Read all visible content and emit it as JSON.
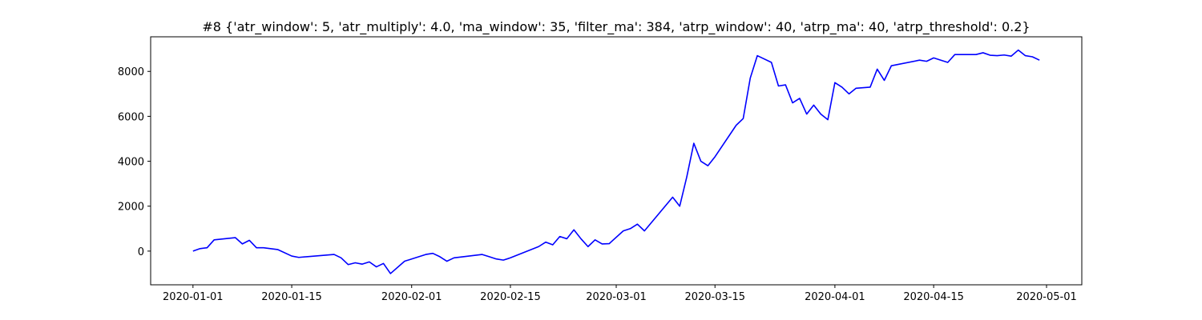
{
  "chart_data": {
    "type": "line",
    "title": "#8 {'atr_window': 5, 'atr_multiply': 4.0, 'ma_window': 35, 'filter_ma': 384, 'atrp_window': 40, 'atrp_ma': 40, 'atrp_threshold': 0.2}",
    "x": [
      "2020-01-01",
      "2020-01-02",
      "2020-01-03",
      "2020-01-04",
      "2020-01-07",
      "2020-01-08",
      "2020-01-09",
      "2020-01-10",
      "2020-01-11",
      "2020-01-13",
      "2020-01-15",
      "2020-01-16",
      "2020-01-21",
      "2020-01-22",
      "2020-01-23",
      "2020-01-24",
      "2020-01-25",
      "2020-01-26",
      "2020-01-27",
      "2020-01-28",
      "2020-01-29",
      "2020-01-31",
      "2020-02-03",
      "2020-02-04",
      "2020-02-05",
      "2020-02-06",
      "2020-02-07",
      "2020-02-11",
      "2020-02-12",
      "2020-02-13",
      "2020-02-14",
      "2020-02-15",
      "2020-02-19",
      "2020-02-20",
      "2020-02-21",
      "2020-02-22",
      "2020-02-23",
      "2020-02-24",
      "2020-02-25",
      "2020-02-26",
      "2020-02-27",
      "2020-02-28",
      "2020-02-29",
      "2020-03-02",
      "2020-03-03",
      "2020-03-04",
      "2020-03-05",
      "2020-03-09",
      "2020-03-10",
      "2020-03-11",
      "2020-03-12",
      "2020-03-13",
      "2020-03-14",
      "2020-03-15",
      "2020-03-18",
      "2020-03-19",
      "2020-03-20",
      "2020-03-21",
      "2020-03-23",
      "2020-03-24",
      "2020-03-25",
      "2020-03-26",
      "2020-03-27",
      "2020-03-28",
      "2020-03-29",
      "2020-03-30",
      "2020-03-31",
      "2020-04-01",
      "2020-04-02",
      "2020-04-03",
      "2020-04-04",
      "2020-04-06",
      "2020-04-07",
      "2020-04-08",
      "2020-04-09",
      "2020-04-13",
      "2020-04-14",
      "2020-04-15",
      "2020-04-17",
      "2020-04-18",
      "2020-04-21",
      "2020-04-22",
      "2020-04-23",
      "2020-04-24",
      "2020-04-25",
      "2020-04-26",
      "2020-04-27",
      "2020-04-28",
      "2020-04-29",
      "2020-04-30"
    ],
    "series": [
      {
        "color": "#0000ff",
        "values": [
          0,
          110,
          150,
          500,
          600,
          320,
          480,
          150,
          150,
          70,
          -220,
          -280,
          -150,
          -300,
          -600,
          -520,
          -580,
          -480,
          -700,
          -550,
          -1000,
          -450,
          -150,
          -100,
          -250,
          -450,
          -300,
          -150,
          -250,
          -350,
          -400,
          -300,
          200,
          400,
          280,
          650,
          550,
          950,
          550,
          200,
          500,
          320,
          330,
          900,
          1000,
          1200,
          900,
          2400,
          2000,
          3300,
          4800,
          4000,
          3800,
          4200,
          5600,
          5900,
          7700,
          8700,
          8400,
          7350,
          7400,
          6600,
          6800,
          6100,
          6500,
          6100,
          5850,
          7500,
          7300,
          7000,
          7250,
          7300,
          8100,
          7600,
          8250,
          8500,
          8450,
          8600,
          8400,
          8750,
          8750,
          8830,
          8720,
          8700,
          8730,
          8680,
          8950,
          8700,
          8650,
          8500
        ]
      }
    ],
    "xlim": [
      "2019-12-26",
      "2020-05-06"
    ],
    "xticks": [
      "2020-01-01",
      "2020-01-15",
      "2020-02-01",
      "2020-02-15",
      "2020-03-01",
      "2020-03-15",
      "2020-04-01",
      "2020-04-15",
      "2020-05-01"
    ],
    "ylim": [
      -1500,
      9540
    ],
    "yticks": [
      0,
      2000,
      4000,
      6000,
      8000
    ]
  }
}
